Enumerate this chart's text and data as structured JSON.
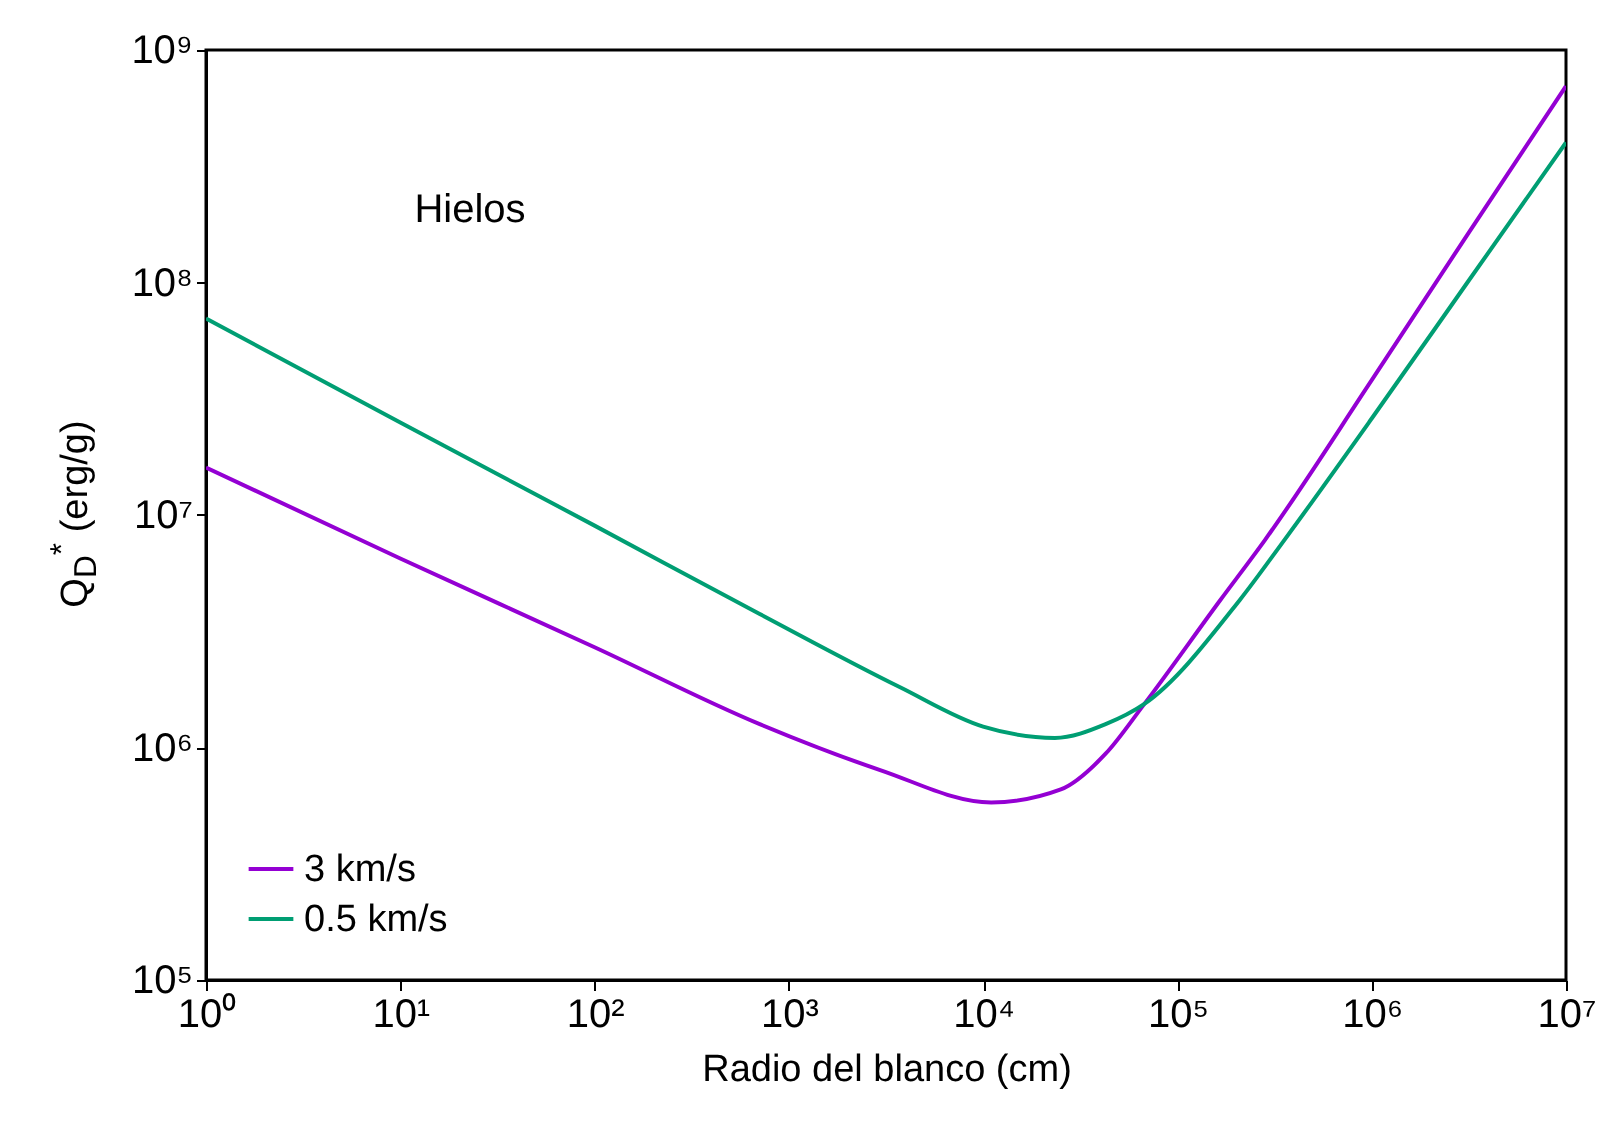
{
  "chart_data": {
    "type": "line",
    "xlabel": "Radio del blanco (cm)",
    "ylabel": "Q$_{D}$$^{*}$ (erg/g)",
    "log": "xy",
    "legend": "bottom left",
    "annotations": [
      "Hielos"
    ],
    "xlim": [
      1,
      10000000
    ],
    "ylim": [
      100000,
      1000000000
    ],
    "xticks": [
      {
        "value": 1,
        "label": "10⁰"
      },
      {
        "value": 10,
        "label": "10¹"
      },
      {
        "value": 100,
        "label": "10²"
      },
      {
        "value": 1000,
        "label": "10³"
      },
      {
        "value": 10000,
        "label": "10⁴"
      },
      {
        "value": 100000,
        "label": "10⁵"
      },
      {
        "value": 1000000,
        "label": "10⁶"
      },
      {
        "value": 10000000,
        "label": "10⁷"
      }
    ],
    "yticks": [
      {
        "value": 100000,
        "label": "10⁵"
      },
      {
        "value": 1000000,
        "label": "10⁶"
      },
      {
        "value": 10000000,
        "label": "10⁷"
      },
      {
        "value": 100000000,
        "label": "10⁸"
      },
      {
        "value": 1000000000,
        "label": "10⁹"
      }
    ],
    "series": [
      {
        "name": "3 km/s",
        "color": "#9400d3",
        "x": [
          1,
          10,
          100,
          708,
          2950,
          11000,
          25100,
          42700,
          67600,
          166000,
          282000,
          1000000,
          3160000,
          10000000
        ],
        "values": [
          16000000,
          6500000,
          2700000,
          1260000,
          800000,
          580000,
          660000,
          940000,
          1540000,
          4300000,
          7800000,
          38000000,
          164000000,
          700000000
        ]
      },
      {
        "name": "0.5 km/s",
        "color": "#009e73",
        "x": [
          1,
          10,
          100,
          708,
          3715,
          10000,
          23400,
          42700,
          67600,
          209000,
          355000,
          1000000,
          3160000,
          10000000
        ],
        "values": [
          70000000,
          25000000,
          9000000,
          3750000,
          1820000,
          1230000,
          1100000,
          1260000,
          1540000,
          4300000,
          7800000,
          26000000,
          102000000,
          400000000
        ]
      }
    ]
  }
}
